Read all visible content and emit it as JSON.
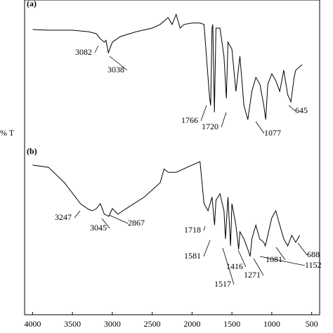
{
  "chart_data": [
    {
      "type": "line",
      "title": "(a)",
      "ylabel": "% T",
      "xlim": [
        4100,
        400
      ],
      "ylim": [
        0,
        100
      ],
      "color": "#000000",
      "x": [
        4000,
        3800,
        3500,
        3300,
        3200,
        3150,
        3100,
        3080,
        3050,
        3000,
        2900,
        2700,
        2500,
        2400,
        2300,
        2250,
        2200,
        2150,
        2100,
        2000,
        1900,
        1850,
        1780,
        1766,
        1750,
        1740,
        1720,
        1700,
        1650,
        1600,
        1570,
        1550,
        1500,
        1450,
        1400,
        1350,
        1300,
        1250,
        1200,
        1150,
        1100,
        1077,
        1050,
        1000,
        950,
        900,
        850,
        800,
        760,
        720,
        700,
        650,
        620
      ],
      "values": [
        79.5,
        79,
        79,
        78,
        76.6,
        73,
        70.7,
        72,
        63.4,
        70.7,
        74.6,
        78,
        80.5,
        83,
        87.8,
        83,
        90,
        80.5,
        83,
        84,
        84,
        83,
        31.7,
        26.8,
        80.5,
        83,
        22,
        80.5,
        80.5,
        61,
        31.7,
        70.7,
        65.9,
        36.6,
        61,
        26.8,
        17,
        36.6,
        46.3,
        41.5,
        26.8,
        17,
        41.5,
        48.8,
        43.9,
        36.6,
        51.2,
        34.1,
        29.3,
        46.3,
        51.2,
        53.7,
        55
      ],
      "peaks": [
        3082,
        3038,
        1766,
        1720,
        1077,
        645
      ]
    },
    {
      "type": "line",
      "title": "(b)",
      "xlim": [
        4100,
        400
      ],
      "ylim": [
        0,
        100
      ],
      "color": "#000000",
      "x": [
        4000,
        3800,
        3600,
        3400,
        3300,
        3247,
        3200,
        3150,
        3100,
        3045,
        3000,
        2930,
        2867,
        2800,
        2600,
        2400,
        2350,
        2300,
        2200,
        2000,
        1900,
        1850,
        1800,
        1750,
        1718,
        1700,
        1650,
        1600,
        1581,
        1550,
        1517,
        1500,
        1450,
        1416,
        1400,
        1350,
        1300,
        1271,
        1250,
        1200,
        1152,
        1100,
        1081,
        1000,
        950,
        900,
        850,
        800,
        750,
        700,
        650
      ],
      "values": [
        89.4,
        88,
        78.7,
        66,
        62.6,
        61.7,
        63,
        66,
        59.6,
        58.3,
        63,
        59.6,
        61.7,
        63.8,
        70,
        78.7,
        87,
        85,
        85,
        89.4,
        91.5,
        66,
        61.7,
        70,
        53,
        68,
        72,
        61.7,
        44.7,
        70,
        40.4,
        66,
        53,
        38.3,
        49,
        44.7,
        38.3,
        34,
        44.7,
        53,
        44.7,
        42.6,
        40.4,
        57.4,
        61.7,
        53,
        44.7,
        40.4,
        46.8,
        42.6,
        46.8
      ],
      "peaks": [
        3247,
        3045,
        2867,
        1718,
        1581,
        1517,
        1416,
        1271,
        1081,
        688,
        1152
      ],
      "xticks": [
        4000,
        3500,
        3000,
        2500,
        2000,
        1500,
        1000,
        500
      ]
    }
  ]
}
